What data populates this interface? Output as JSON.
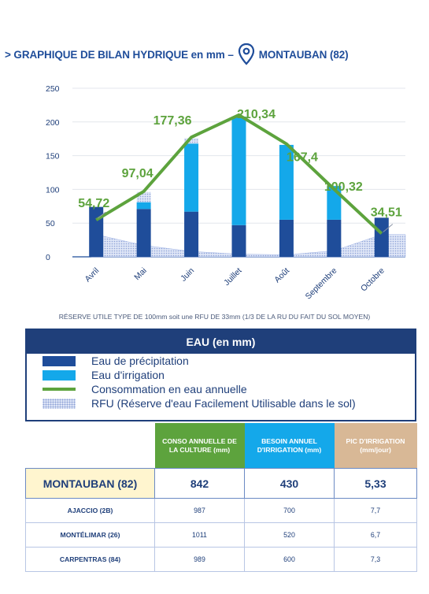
{
  "title": {
    "text_left": "> GRAPHIQUE DE BILAN HYDRIQUE en mm –",
    "text_right": "MONTAUBAN (82)"
  },
  "chart_data": {
    "type": "bar",
    "categories": [
      "Avril",
      "Mai",
      "Juin",
      "Juillet",
      "Août",
      "Septembre",
      "Octobre"
    ],
    "ylim": [
      0,
      250
    ],
    "yticks": [
      0,
      50,
      100,
      150,
      200,
      250
    ],
    "grid": true,
    "stacked": true,
    "series": [
      {
        "name": "Eau de précipitation",
        "type": "bar",
        "color": "#1f4d9a",
        "values": [
          74,
          71,
          67,
          47,
          55,
          55,
          58
        ]
      },
      {
        "name": "Eau d'irrigation",
        "type": "bar",
        "color": "#14a8ea",
        "values": [
          0,
          10,
          101,
          161,
          111,
          50,
          0
        ]
      },
      {
        "name": "RFU (Réserve d'eau Facilement Utilisable dans le sol)",
        "type": "area",
        "color": "#9fb3e6",
        "values": [
          33,
          17,
          8,
          4,
          3,
          9,
          33
        ]
      },
      {
        "name": "Consommation en eau annuelle",
        "type": "line",
        "color": "#5da33d",
        "values": [
          54.72,
          97.04,
          177.36,
          210.34,
          167.4,
          100.32,
          34.51
        ],
        "labels": [
          "54,72",
          "97,04",
          "177,36",
          "210,34",
          "167,4",
          "100,32",
          "34,51"
        ]
      }
    ],
    "reserve_values": [
      0,
      15,
      8,
      0,
      0,
      0,
      0
    ]
  },
  "ru_note": "RÉSERVE UTILE TYPE DE 100mm soit une RFU DE 33mm (1/3 DE LA RU DU FAIT DU SOL MOYEN)",
  "legend": {
    "title": "EAU (en mm)",
    "items": [
      "Eau de précipitation",
      "Eau d'irrigation",
      "Consommation en eau annuelle",
      "RFU (Réserve d'eau Facilement Utilisable dans le sol)"
    ]
  },
  "table": {
    "headers": [
      "CONSO ANNUELLE DE LA CULTURE (mm)",
      "BESOIN ANNUEL D'IRRIGATION (mm)",
      "PIC D'IRRIGATION (mm/jour)"
    ],
    "header_colors": [
      "#5da33d",
      "#14a8ea",
      "#d8b896"
    ],
    "rows": [
      {
        "city": "MONTAUBAN (82)",
        "conso": "842",
        "besoin": "430",
        "pic": "5,33"
      },
      {
        "city": "AJACCIO (2B)",
        "conso": "987",
        "besoin": "700",
        "pic": "7,7"
      },
      {
        "city": "MONTÉLIMAR (26)",
        "conso": "1011",
        "besoin": "520",
        "pic": "6,7"
      },
      {
        "city": "CARPENTRAS (84)",
        "conso": "989",
        "besoin": "600",
        "pic": "7,3"
      }
    ]
  },
  "colors": {
    "navy": "#1f3f7a",
    "precipitation": "#1f4d9a",
    "irrigation": "#14a8ea",
    "consommation": "#5da33d",
    "rfu": "#9fb3e6"
  },
  "icons": {
    "location": "map-pin-icon"
  }
}
